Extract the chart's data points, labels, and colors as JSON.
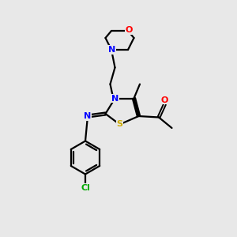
{
  "bg_color": "#e8e8e8",
  "bond_color": "#000000",
  "atom_colors": {
    "O": "#ff0000",
    "N": "#0000ff",
    "S": "#ccaa00",
    "Cl": "#00aa00",
    "C": "#000000"
  },
  "figsize": [
    3.0,
    3.0
  ],
  "dpi": 100,
  "xlim": [
    0,
    10
  ],
  "ylim": [
    0,
    10
  ]
}
